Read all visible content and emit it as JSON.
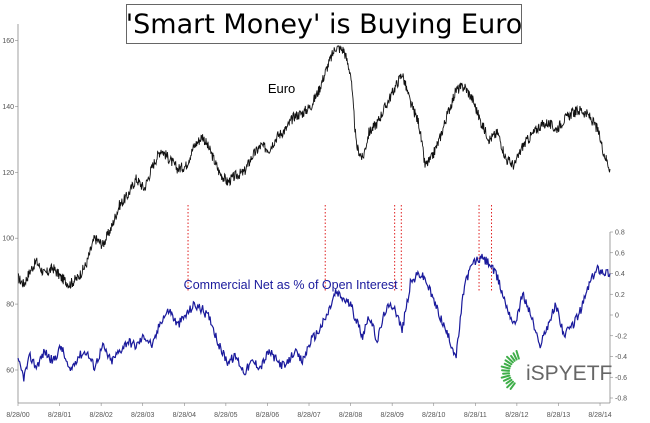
{
  "title": "'Smart Money' is Buying Euro",
  "watermark": "iSPYETF",
  "colors": {
    "euro": "#111111",
    "commercial": "#1a1a9c",
    "markers": "#e02020",
    "watermark_green": "#3fae49",
    "watermark_text": "#666666"
  },
  "chart_data": {
    "type": "line",
    "title": "'Smart Money' is Buying Euro",
    "x_tick_labels": [
      "8/28/00",
      "8/28/01",
      "8/28/02",
      "8/28/03",
      "8/28/04",
      "8/28/05",
      "8/28/06",
      "8/28/07",
      "8/28/08",
      "8/28/09",
      "8/28/10",
      "8/28/11",
      "8/28/12",
      "8/28/13",
      "8/28/14"
    ],
    "xlim": [
      2000.66,
      2014.9
    ],
    "y_left": {
      "ticks": [
        60,
        80,
        100,
        120,
        140,
        160
      ],
      "range": [
        60,
        165
      ]
    },
    "y_right": {
      "ticks": [
        -0.8,
        -0.6,
        -0.4,
        -0.2,
        0,
        0.2,
        0.4,
        0.6,
        0.8
      ],
      "range": [
        -0.8,
        0.8
      ]
    },
    "grid": false,
    "series": [
      {
        "name": "Euro",
        "axis": "left",
        "x": [
          2000.66,
          2000.8,
          2000.95,
          2001.1,
          2001.3,
          2001.5,
          2001.7,
          2001.9,
          2002.1,
          2002.3,
          2002.5,
          2002.7,
          2002.9,
          2003.1,
          2003.3,
          2003.5,
          2003.7,
          2003.9,
          2004.1,
          2004.3,
          2004.5,
          2004.7,
          2004.9,
          2005.1,
          2005.3,
          2005.5,
          2005.7,
          2005.9,
          2006.1,
          2006.3,
          2006.5,
          2006.7,
          2006.9,
          2007.1,
          2007.3,
          2007.5,
          2007.7,
          2007.9,
          2008.1,
          2008.3,
          2008.5,
          2008.66,
          2008.8,
          2008.95,
          2009.1,
          2009.3,
          2009.5,
          2009.7,
          2009.9,
          2010.1,
          2010.3,
          2010.45,
          2010.6,
          2010.8,
          2011.0,
          2011.2,
          2011.4,
          2011.6,
          2011.8,
          2012.0,
          2012.2,
          2012.4,
          2012.6,
          2012.8,
          2013.0,
          2013.2,
          2013.4,
          2013.6,
          2013.8,
          2014.0,
          2014.2,
          2014.4,
          2014.6,
          2014.75,
          2014.9
        ],
        "values": [
          88,
          86,
          90,
          93,
          89,
          91,
          88,
          86,
          88,
          92,
          100,
          98,
          103,
          110,
          113,
          118,
          115,
          122,
          127,
          124,
          121,
          122,
          128,
          131,
          126,
          120,
          117,
          119,
          120,
          125,
          128,
          127,
          131,
          133,
          137,
          138,
          140,
          145,
          152,
          158,
          157,
          150,
          128,
          124,
          132,
          135,
          140,
          145,
          150,
          141,
          135,
          122,
          124,
          130,
          138,
          145,
          146,
          142,
          135,
          130,
          132,
          124,
          122,
          128,
          131,
          134,
          135,
          133,
          136,
          138,
          139,
          137,
          133,
          126,
          121
        ]
      },
      {
        "name": "Commercial Net as % of Open Interest",
        "axis": "right",
        "x": [
          2000.66,
          2000.8,
          2000.95,
          2001.1,
          2001.3,
          2001.5,
          2001.7,
          2001.9,
          2002.1,
          2002.3,
          2002.5,
          2002.7,
          2002.9,
          2003.1,
          2003.3,
          2003.5,
          2003.7,
          2003.9,
          2004.1,
          2004.3,
          2004.5,
          2004.7,
          2004.9,
          2005.1,
          2005.3,
          2005.5,
          2005.7,
          2005.9,
          2006.1,
          2006.3,
          2006.5,
          2006.7,
          2006.9,
          2007.1,
          2007.3,
          2007.5,
          2007.7,
          2007.9,
          2008.1,
          2008.3,
          2008.5,
          2008.66,
          2008.8,
          2008.95,
          2009.1,
          2009.3,
          2009.5,
          2009.7,
          2009.9,
          2010.1,
          2010.3,
          2010.45,
          2010.6,
          2010.8,
          2011.0,
          2011.2,
          2011.4,
          2011.6,
          2011.8,
          2012.0,
          2012.2,
          2012.4,
          2012.6,
          2012.8,
          2013.0,
          2013.2,
          2013.4,
          2013.6,
          2013.8,
          2014.0,
          2014.2,
          2014.4,
          2014.6,
          2014.75,
          2014.9
        ],
        "values": [
          -0.45,
          -0.6,
          -0.4,
          -0.5,
          -0.35,
          -0.45,
          -0.3,
          -0.55,
          -0.4,
          -0.35,
          -0.5,
          -0.3,
          -0.45,
          -0.35,
          -0.25,
          -0.3,
          -0.2,
          -0.3,
          -0.05,
          0.05,
          -0.1,
          0.0,
          0.1,
          0.05,
          -0.05,
          -0.3,
          -0.45,
          -0.4,
          -0.55,
          -0.45,
          -0.5,
          -0.35,
          -0.45,
          -0.5,
          -0.35,
          -0.45,
          -0.25,
          -0.15,
          0.0,
          0.22,
          0.15,
          0.1,
          -0.05,
          -0.2,
          0.0,
          -0.25,
          0.05,
          0.1,
          -0.15,
          0.3,
          0.4,
          0.35,
          0.2,
          0.0,
          -0.2,
          -0.4,
          0.3,
          0.5,
          0.55,
          0.5,
          0.35,
          0.1,
          -0.1,
          0.2,
          0.0,
          -0.3,
          -0.1,
          0.1,
          -0.2,
          -0.1,
          0.05,
          0.3,
          0.45,
          0.42,
          0.4
        ]
      }
    ],
    "annotations": [
      {
        "text": "Euro",
        "x": 2007.0,
        "y": 144,
        "axis": "left"
      },
      {
        "text": "Commercial Net as % of Open Interest",
        "x": 2007.7,
        "y": 0.22,
        "axis": "right"
      }
    ],
    "marker_lines_x": [
      2004.75,
      2008.05,
      2009.72,
      2009.88,
      2011.75,
      2012.05
    ]
  }
}
